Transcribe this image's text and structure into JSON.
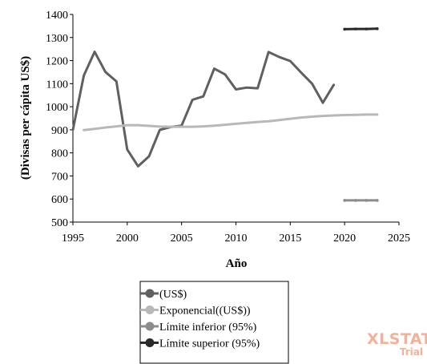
{
  "chart_data": {
    "type": "line",
    "xlabel": "Año",
    "ylabel": "(Divisas per cápita US$)",
    "xlim": [
      1995,
      2025
    ],
    "ylim": [
      500,
      1400
    ],
    "x_ticks": [
      "1995",
      "2000",
      "2005",
      "2010",
      "2015",
      "2020",
      "2025"
    ],
    "y_ticks": [
      "500",
      "600",
      "700",
      "800",
      "900",
      "1000",
      "1100",
      "1200",
      "1300",
      "1400"
    ],
    "grid": false,
    "legend_position": "bottom",
    "series": [
      {
        "name": "(US$)",
        "color": "#606060",
        "x": [
          1995,
          1996,
          1997,
          1998,
          1999,
          2000,
          2001,
          2002,
          2003,
          2004,
          2005,
          2006,
          2007,
          2008,
          2009,
          2010,
          2011,
          2012,
          2013,
          2014,
          2015,
          2016,
          2017,
          2018,
          2019
        ],
        "y": [
          900,
          1135,
          1238,
          1150,
          1110,
          815,
          742,
          785,
          900,
          912,
          918,
          1030,
          1045,
          1165,
          1140,
          1075,
          1083,
          1080,
          1237,
          1215,
          1198,
          1148,
          1100,
          1017,
          1095
        ]
      },
      {
        "name": "Exponencial((US$))",
        "color": "#b8b8b8",
        "x": [
          1996,
          1997,
          1998,
          1999,
          2000,
          2001,
          2002,
          2003,
          2004,
          2005,
          2006,
          2007,
          2008,
          2009,
          2010,
          2011,
          2012,
          2013,
          2014,
          2015,
          2016,
          2017,
          2018,
          2019,
          2020,
          2021,
          2022,
          2023
        ],
        "y": [
          899,
          904,
          910,
          915,
          920,
          920,
          917,
          914,
          913,
          913,
          913,
          915,
          918,
          922,
          926,
          930,
          934,
          937,
          942,
          948,
          953,
          957,
          960,
          962,
          964,
          965,
          966,
          966
        ]
      },
      {
        "name": "Límite inferior (95%)",
        "color": "#8c8c8c",
        "x": [
          2020,
          2021,
          2022,
          2023
        ],
        "y": [
          594,
          594,
          594,
          594
        ]
      },
      {
        "name": "Límite superior (95%)",
        "color": "#2a2a2a",
        "x": [
          2020,
          2021,
          2022,
          2023
        ],
        "y": [
          1336,
          1337,
          1337,
          1338
        ]
      }
    ]
  },
  "watermark": {
    "title": "XLSTAT",
    "subtitle": "Trial"
  }
}
